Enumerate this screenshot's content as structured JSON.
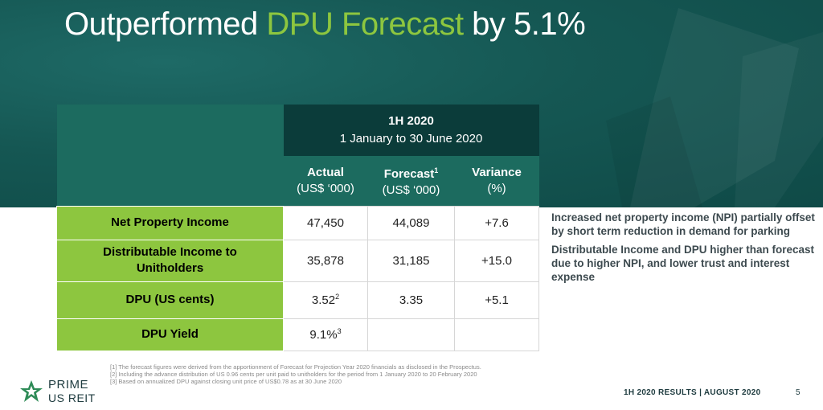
{
  "slide": {
    "title_part1": "Outperformed ",
    "title_highlight": "DPU Forecast",
    "title_part2": " by 5.1%"
  },
  "table": {
    "period_title": "1H 2020",
    "period_subtitle": "1 January to 30 June 2020",
    "columns": [
      {
        "label": "Actual",
        "sup": "",
        "unit": "(US$ ‘000)"
      },
      {
        "label": "Forecast",
        "sup": "1",
        "unit": "(US$ ‘000)"
      },
      {
        "label": "Variance",
        "sup": "",
        "unit": "(%)"
      }
    ],
    "rows": [
      {
        "label": "Net Property Income",
        "actual": "47,450",
        "actual_sup": "",
        "forecast": "44,089",
        "variance": "+7.6"
      },
      {
        "label_line1": "Distributable Income to",
        "label_line2": "Unitholders",
        "actual": "35,878",
        "actual_sup": "",
        "forecast": "31,185",
        "variance": "+15.0"
      },
      {
        "label": "DPU (US cents)",
        "actual": "3.52",
        "actual_sup": "2",
        "forecast": "3.35",
        "variance": "+5.1"
      },
      {
        "label": "DPU Yield",
        "actual": "9.1%",
        "actual_sup": "3",
        "forecast": "",
        "variance": ""
      }
    ]
  },
  "bullets": [
    "Increased net property income (NPI) partially offset by short term reduction in demand for parking",
    "Distributable Income and DPU higher than forecast due to higher NPI, and lower trust and interest expense"
  ],
  "footnotes": [
    "[1] The forecast figures were derived from the apportionment of Forecast for Projection Year 2020 financials as disclosed in the Prospectus.",
    "[2]  Including the advance distribution of US 0.96 cents per unit paid to unitholders for the period from 1 January 2020 to 20 February 2020",
    "[3]  Based on annualized DPU against closing unit price of US$0.78 as at 30 June 2020"
  ],
  "logo": {
    "line1": "PRIME",
    "line2": "US REIT"
  },
  "footer": {
    "text": "1H 2020 RESULTS  | AUGUST 2020",
    "page": "5"
  },
  "colors": {
    "teal_dark": "#0b3c3a",
    "teal_mid": "#1c6b5f",
    "green": "#8dc63f",
    "banner": "#155753"
  }
}
